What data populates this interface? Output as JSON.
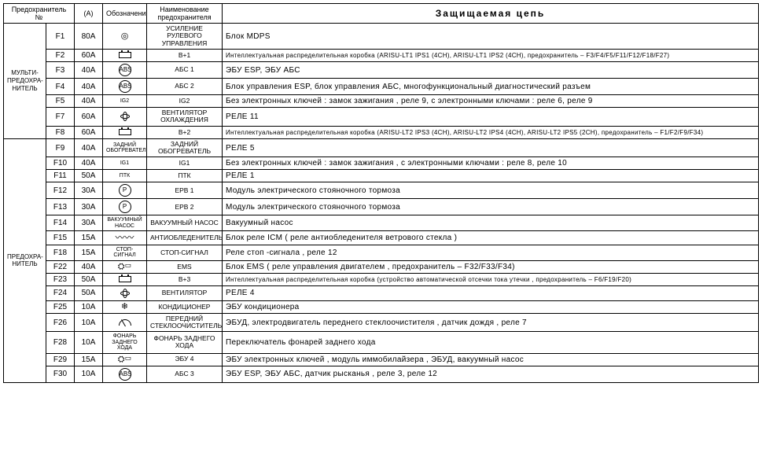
{
  "headers": {
    "fuse_no": "Предохранитель    №",
    "amp": "(A)",
    "symbol": "Обозначение",
    "name": "Наименование предохранителя",
    "protected": "Защищаемая    цепь"
  },
  "groups": [
    {
      "label_html": "МУЛЬТИ-<br>ПРЕДОХРА-<br>НИТЕЛЬ",
      "span": 7
    },
    {
      "label_html": "ПРЕДОХРА-<br>НИТЕЛЬ",
      "span": 16
    }
  ],
  "rows": [
    {
      "num": "F1",
      "amp": "80A",
      "icon": "steering",
      "name": "УСИЛЕНИЕ РУЛЕВОГО УПРАВЛЕНИЯ",
      "circuit": "Блок  MDPS"
    },
    {
      "num": "F2",
      "amp": "60A",
      "icon": "batt",
      "name": "B+1",
      "circuit": "Интеллектуальная    распределительная    коробка  (ARISU-LT1 IPS1 (4CH), ARISU-LT1 IPS2 (4CH),    предохранитель    – F3/F4/F5/F11/F12/F18/F27)",
      "small": true
    },
    {
      "num": "F3",
      "amp": "40A",
      "icon": "abs",
      "name": "АБС 1",
      "circuit": "ЭБУ ESP,  ЭБУ АБС"
    },
    {
      "num": "F4",
      "amp": "40A",
      "icon": "abs",
      "name": "АБС 2",
      "circuit": "Блок  управления   ESP,  блок  управления   АБС, многофункциональный    диагностический    разъем"
    },
    {
      "num": "F5",
      "amp": "40A",
      "icon": "ig2",
      "name": "IG2",
      "circuit": "Без электронных   ключей : замок  зажигания , реле  9,  с электронными   ключами : реле  6, реле  9"
    },
    {
      "num": "F7",
      "amp": "60A",
      "icon": "coolfan",
      "name": "ВЕНТИЛЯТОР ОХЛАЖДЕНИЯ",
      "circuit": "РЕЛЕ  11"
    },
    {
      "num": "F8",
      "amp": "60A",
      "icon": "batt",
      "name": "B+2",
      "circuit": "Интеллектуальная    распределительная    коробка  (ARISU-LT2 IPS3 (4CH), ARISU-LT2 IPS4 (4CH), ARISU-LT2 IPS5 (2CH),    предохранитель    – F1/F2/F9/F34)",
      "small": true
    },
    {
      "num": "F9",
      "amp": "40A",
      "icon": "rearheat",
      "name": "ЗАДНИЙ ОБОГРЕВАТЕЛЬ",
      "circuit": "РЕЛЕ  5"
    },
    {
      "num": "F10",
      "amp": "40A",
      "icon": "ig1",
      "name": "IG1",
      "circuit": "Без электронных   ключей : замок  зажигания ,  с электронными   ключами : реле  8,  реле  10"
    },
    {
      "num": "F11",
      "amp": "50A",
      "icon": "ptk",
      "name": "ПТК",
      "circuit": "РЕЛЕ  1"
    },
    {
      "num": "F12",
      "amp": "30A",
      "icon": "epb",
      "name": "EPB  1",
      "circuit": "Модуль  электрического   стояночного   тормоза"
    },
    {
      "num": "F13",
      "amp": "30A",
      "icon": "epb",
      "name": "EPB  2",
      "circuit": "Модуль  электрического   стояночного   тормоза"
    },
    {
      "num": "F14",
      "amp": "30A",
      "icon": "vacpump",
      "name": "ВАКУУМНЫЙ НАСОС",
      "circuit": "Вакуумный  насос"
    },
    {
      "num": "F15",
      "amp": "15A",
      "icon": "deicer",
      "name": "АНТИОБЛЕДЕНИТЕЛЬ",
      "circuit": "Блок  реле  ICM ( реле  антиобледенителя    ветрового  стекла  )"
    },
    {
      "num": "F18",
      "amp": "15A",
      "icon": "stop",
      "name": "СТОП-СИГНАЛ",
      "circuit": "Реле  стоп -сигнала , реле  12"
    },
    {
      "num": "F22",
      "amp": "40A",
      "icon": "ems",
      "name": "EMS",
      "circuit": "Блок  EMS ( реле  управления   двигателем  , предохранитель    – F32/F33/F34)"
    },
    {
      "num": "F23",
      "amp": "50A",
      "icon": "batt",
      "name": "B+3",
      "circuit": "Интеллектуальная    распределительная    коробка  (устройство  автоматической    отсечки   тока  утечки , предохранитель    – F6/F19/F20)",
      "small": true
    },
    {
      "num": "F24",
      "amp": "50A",
      "icon": "fan",
      "name": "ВЕНТИЛЯТОР",
      "circuit": "РЕЛЕ  4"
    },
    {
      "num": "F25",
      "amp": "10A",
      "icon": "ac",
      "name": "КОНДИЦИОНЕР",
      "circuit": "ЭБУ  кондиционера"
    },
    {
      "num": "F26",
      "amp": "10A",
      "icon": "wiper",
      "name": "ПЕРЕДНИЙ СТЕКЛООЧИСТИТЕЛЬ",
      "circuit": "ЭБУД,  электродвигатель    переднего  стеклоочистителя    ,  датчик  дождя , реле  7"
    },
    {
      "num": "F28",
      "amp": "10A",
      "icon": "rearlamp",
      "name": "ФОНАРЬ ЗАДНЕГО ХОДА",
      "circuit": "Переключатель    фонарей   заднего  хода"
    },
    {
      "num": "F29",
      "amp": "15A",
      "icon": "ecu4",
      "name": "ЭБУ 4",
      "circuit": "ЭБУ электронных   ключей , модуль  иммобилайзера  , ЭБУД,  вакуумный   насос"
    },
    {
      "num": "F30",
      "amp": "10A",
      "icon": "abs",
      "name": "АБС 3",
      "circuit": "ЭБУ ESP,  ЭБУ АБС, датчик   рысканья  , реле  3,  реле  12"
    }
  ],
  "icons": {
    "steering": "◎",
    "batt": "BATT",
    "abs": "ABS",
    "ig2": "IG2",
    "ig1": "IG1",
    "coolfan": "FAN",
    "rearheat": "ЗАДНИЙ ОБОГРЕВАТЕЛЬ",
    "ptk": "ПТК",
    "epb": "(P)",
    "vacpump": "ВАКУУМНЫЙ НАСОС",
    "deicer": "WAVE",
    "stop": "СТОП-СИГНАЛ",
    "ems": "⛭▭",
    "fan": "FANSYM",
    "ac": "❄",
    "wiper": "WIPER",
    "rearlamp": "ФОНАРЬ ЗАДНЕГО ХОДА",
    "ecu4": "⛭▭"
  }
}
